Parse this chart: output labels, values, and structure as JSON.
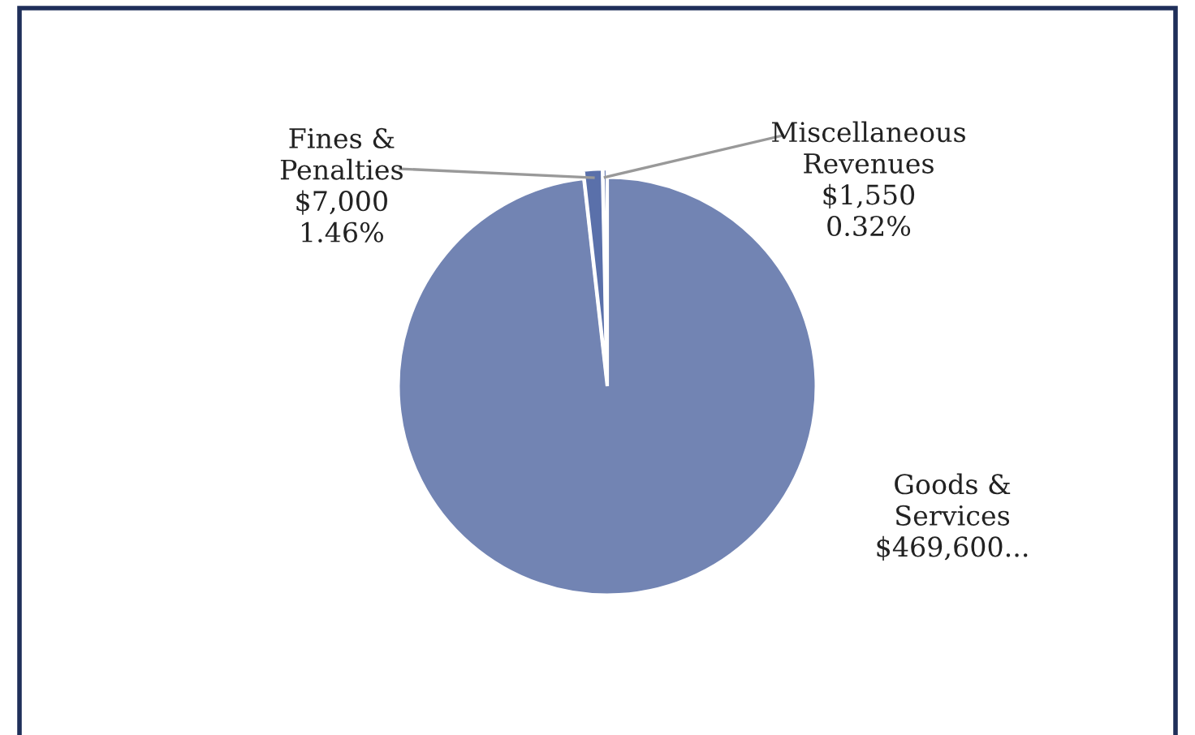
{
  "chart_data": {
    "type": "pie",
    "categories": [
      "Goods & Services",
      "Fines & Penalties",
      "Miscellaneous Revenues"
    ],
    "values": [
      469600,
      7000,
      1550
    ],
    "value_labels": [
      "$469,600...",
      "$7,000 1.46%",
      "$1,550 0.32%"
    ],
    "colors": [
      "#7284b3",
      "#5a70aa",
      "#4f66a3"
    ]
  }
}
